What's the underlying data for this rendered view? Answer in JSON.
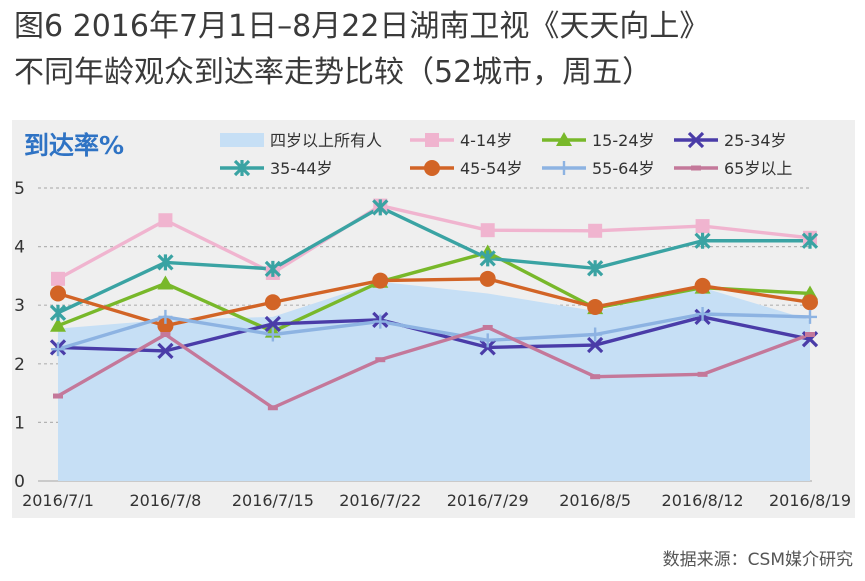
{
  "title_line1": "图6  2016年7月1日–8月22日湖南卫视《天天向上》",
  "title_line2": "不同年龄观众到达率走势比较（52城市，周五）",
  "source": "数据来源：CSM媒介研究",
  "chart_data": {
    "type": "line",
    "ylabel": "到达率%",
    "ylim": [
      0,
      5
    ],
    "yticks": [
      "0",
      "1",
      "2",
      "3",
      "4",
      "5"
    ],
    "grid": true,
    "categories": [
      "2016/7/1",
      "2016/7/8",
      "2016/7/15",
      "2016/7/22",
      "2016/7/29",
      "2016/8/5",
      "2016/8/12",
      "2016/8/19"
    ],
    "area": {
      "name": "四岁以上所有人",
      "color": "#c6dff5",
      "values": [
        2.6,
        2.75,
        2.8,
        3.4,
        3.2,
        2.9,
        3.3,
        2.75
      ]
    },
    "series": [
      {
        "name": "4-14岁",
        "color": "#f0b4cf",
        "marker": "square",
        "values": [
          3.45,
          4.45,
          3.55,
          4.7,
          4.28,
          4.27,
          4.35,
          4.15
        ]
      },
      {
        "name": "15-24岁",
        "color": "#78b82a",
        "marker": "triangle",
        "values": [
          2.65,
          3.37,
          2.55,
          3.4,
          3.9,
          2.95,
          3.3,
          3.2
        ]
      },
      {
        "name": "25-34岁",
        "color": "#4a3ca8",
        "marker": "x",
        "values": [
          2.28,
          2.22,
          2.68,
          2.75,
          2.28,
          2.32,
          2.8,
          2.42
        ]
      },
      {
        "name": "35-44岁",
        "color": "#3aa3a3",
        "marker": "xstar",
        "values": [
          2.87,
          3.73,
          3.62,
          4.67,
          3.8,
          3.63,
          4.1,
          4.1
        ]
      },
      {
        "name": "45-54岁",
        "color": "#d26426",
        "marker": "circle",
        "values": [
          3.2,
          2.65,
          3.05,
          3.42,
          3.45,
          2.97,
          3.33,
          3.05
        ]
      },
      {
        "name": "55-64岁",
        "color": "#8db3e2",
        "marker": "plus",
        "values": [
          2.25,
          2.8,
          2.5,
          2.72,
          2.4,
          2.5,
          2.85,
          2.8
        ]
      },
      {
        "name": "65岁以上",
        "color": "#c4789a",
        "marker": "dash",
        "values": [
          1.45,
          2.5,
          1.25,
          2.07,
          2.62,
          1.78,
          1.82,
          2.5
        ]
      }
    ]
  }
}
